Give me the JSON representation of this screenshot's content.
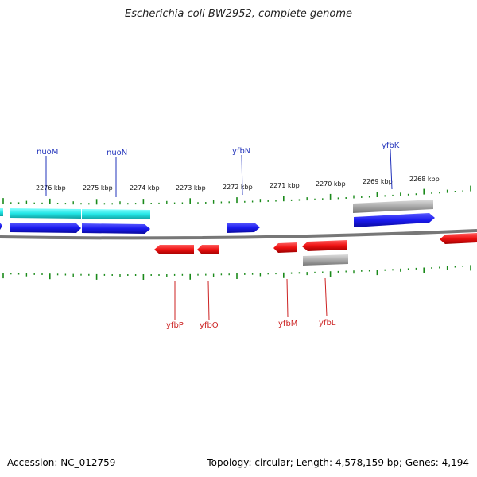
{
  "title": "Escherichia coli BW2952, complete genome",
  "footer": {
    "accession": "Accession: NC_012759",
    "stats": "Topology: circular; Length: 4,578,159 bp; Genes: 4,194"
  },
  "colors": {
    "forward_gene": "#1a1aee",
    "reverse_gene": "#ee1111",
    "cds_cyan": "#22e6e6",
    "cds_gray": "#aaaaaa",
    "ticks": "#1a8a1a",
    "backbone": "#777777"
  },
  "scale_labels": [
    "2276 kbp",
    "2275 kbp",
    "2274 kbp",
    "2273 kbp",
    "2272 kbp",
    "2271 kbp",
    "2270 kbp",
    "2269 kbp",
    "2268 kbp"
  ],
  "genes_top": [
    {
      "name": "nuoM"
    },
    {
      "name": "nuoN"
    },
    {
      "name": "yfbN"
    },
    {
      "name": "yfbK"
    }
  ],
  "genes_bottom": [
    {
      "name": "yfbP"
    },
    {
      "name": "yfbO"
    },
    {
      "name": "yfbM"
    },
    {
      "name": "yfbL"
    }
  ]
}
